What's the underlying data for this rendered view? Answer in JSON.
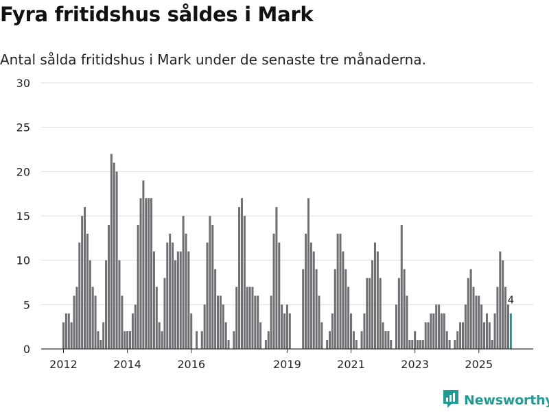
{
  "title": "Fyra fritidshus såldes i Mark",
  "subtitle": "Antal sålda fritidshus i Mark under de senaste tre månaderna.",
  "brand": {
    "name": "Newsworthy",
    "icon": "newsworthy-logo-icon",
    "color": "#1f9c95"
  },
  "colors": {
    "bar": "#6e6e73",
    "highlight": "#1a9a93",
    "grid": "#dddddd",
    "axis": "#333333"
  },
  "chart_data": {
    "type": "bar",
    "title": "Fyra fritidshus såldes i Mark",
    "xlabel": "",
    "ylabel": "",
    "ylim": [
      0,
      30
    ],
    "yticks": [
      0,
      5,
      10,
      15,
      20,
      25,
      30
    ],
    "xticks": [
      {
        "label": "2012",
        "index": 0
      },
      {
        "label": "2014",
        "index": 24
      },
      {
        "label": "2016",
        "index": 48
      },
      {
        "label": "2019",
        "index": 84
      },
      {
        "label": "2021",
        "index": 108
      },
      {
        "label": "2023",
        "index": 132
      },
      {
        "label": "2025",
        "index": 156
      }
    ],
    "grid": true,
    "values": [
      3,
      4,
      4,
      3,
      6,
      7,
      12,
      15,
      16,
      13,
      10,
      7,
      6,
      2,
      1,
      3,
      10,
      14,
      22,
      21,
      20,
      10,
      6,
      2,
      2,
      2,
      4,
      5,
      14,
      17,
      19,
      17,
      17,
      17,
      11,
      7,
      3,
      2,
      8,
      12,
      13,
      12,
      10,
      11,
      11,
      15,
      13,
      11,
      4,
      0,
      2,
      0,
      2,
      5,
      12,
      15,
      14,
      9,
      6,
      6,
      5,
      3,
      1,
      0,
      2,
      7,
      16,
      17,
      15,
      7,
      7,
      7,
      6,
      6,
      3,
      0,
      1,
      2,
      6,
      13,
      16,
      12,
      5,
      4,
      5,
      4,
      0,
      0,
      0,
      0,
      9,
      13,
      17,
      12,
      11,
      9,
      6,
      3,
      0,
      1,
      2,
      4,
      9,
      13,
      13,
      11,
      9,
      7,
      4,
      2,
      1,
      0,
      2,
      4,
      8,
      8,
      10,
      12,
      11,
      8,
      3,
      2,
      2,
      1,
      0,
      5,
      8,
      14,
      9,
      6,
      1,
      1,
      2,
      1,
      1,
      1,
      3,
      3,
      4,
      4,
      5,
      5,
      4,
      4,
      2,
      1,
      0,
      1,
      2,
      3,
      3,
      5,
      8,
      9,
      7,
      6,
      6,
      5,
      3,
      4,
      3,
      1,
      4,
      7,
      11,
      10,
      7,
      5,
      4
    ],
    "highlight_index": 168,
    "data_labels": [
      {
        "index": 168,
        "text": "4"
      }
    ]
  }
}
